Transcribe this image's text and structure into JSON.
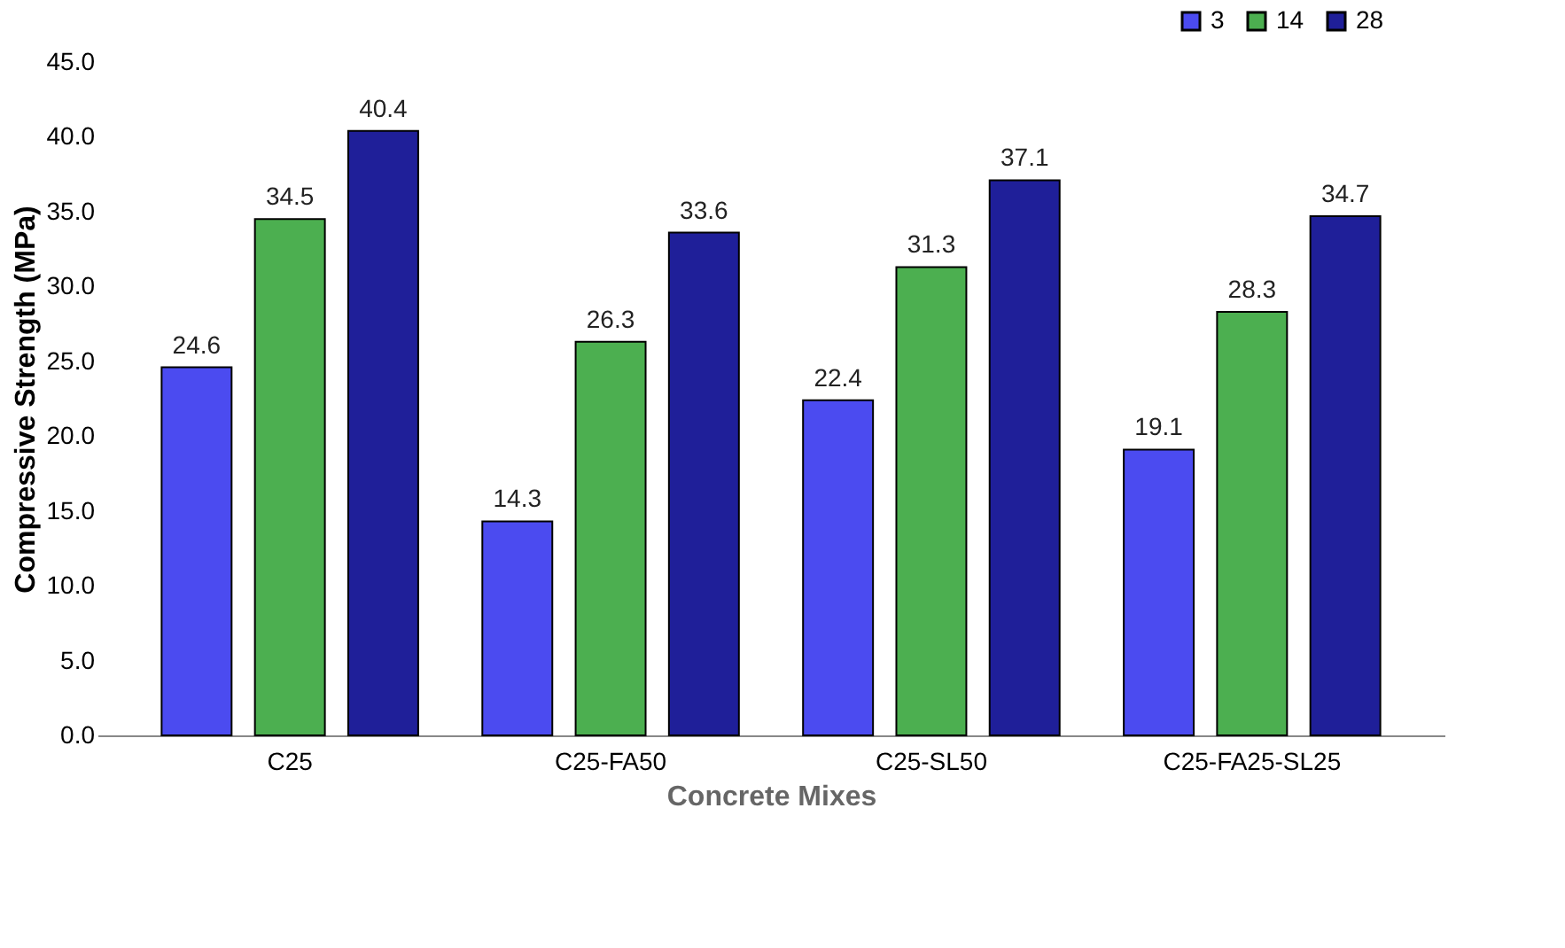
{
  "chart_data": {
    "type": "bar",
    "xlabel": "Concrete Mixes",
    "ylabel": "Compressive Strength (MPa)",
    "categories": [
      "C25",
      "C25-FA50",
      "C25-SL50",
      "C25-FA25-SL25"
    ],
    "series": [
      {
        "name": "3",
        "color": "#4b4bf0",
        "values": [
          24.6,
          14.3,
          22.4,
          19.1
        ]
      },
      {
        "name": "14",
        "color": "#4caf50",
        "values": [
          34.5,
          26.3,
          31.3,
          28.3
        ]
      },
      {
        "name": "28",
        "color": "#1f1f99",
        "values": [
          40.4,
          33.6,
          37.1,
          34.7
        ]
      }
    ],
    "ylim": [
      0,
      45
    ],
    "yticks": [
      {
        "value": 0,
        "label": "0.0"
      },
      {
        "value": 5,
        "label": "5.0"
      },
      {
        "value": 10,
        "label": "10.0"
      },
      {
        "value": 15,
        "label": "15.0"
      },
      {
        "value": 20,
        "label": "20.0"
      },
      {
        "value": 25,
        "label": "25.0"
      },
      {
        "value": 30,
        "label": "30.0"
      },
      {
        "value": 35,
        "label": "35.0"
      },
      {
        "value": 40,
        "label": "40.0"
      },
      {
        "value": 45,
        "label": "45.0"
      }
    ],
    "data_labels": true,
    "legend": "top right",
    "grid": false
  }
}
